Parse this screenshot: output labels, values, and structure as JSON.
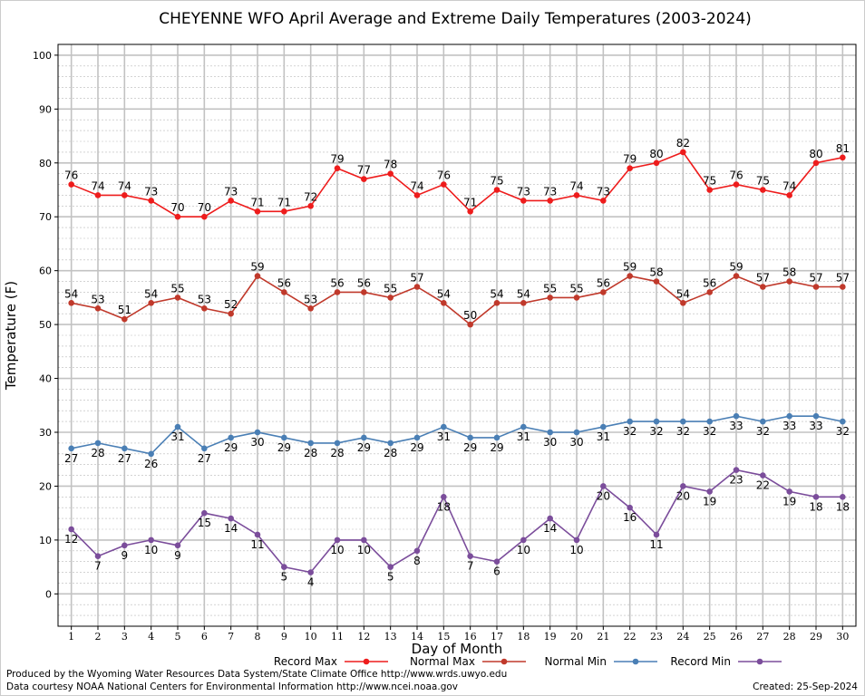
{
  "chart_data": {
    "type": "line",
    "title": "CHEYENNE WFO April Average and Extreme Daily Temperatures (2003-2024)",
    "xlabel": "Day of Month",
    "ylabel": "Temperature (F)",
    "xlim": [
      0.5,
      30.5
    ],
    "ylim": [
      -6,
      102
    ],
    "y_ticks": [
      0,
      10,
      20,
      30,
      40,
      50,
      60,
      70,
      80,
      90,
      100
    ],
    "x": [
      1,
      2,
      3,
      4,
      5,
      6,
      7,
      8,
      9,
      10,
      11,
      12,
      13,
      14,
      15,
      16,
      17,
      18,
      19,
      20,
      21,
      22,
      23,
      24,
      25,
      26,
      27,
      28,
      29,
      30
    ],
    "grid": true,
    "legend_position": "bottom",
    "series": [
      {
        "name": "Record Max",
        "color": "#ee1c1c",
        "label_position": "above",
        "values": [
          76,
          74,
          74,
          73,
          70,
          70,
          73,
          71,
          71,
          72,
          79,
          77,
          78,
          74,
          76,
          71,
          75,
          73,
          73,
          74,
          73,
          79,
          80,
          82,
          75,
          76,
          75,
          74,
          80,
          81
        ]
      },
      {
        "name": "Normal Max",
        "color": "#c0392b",
        "label_position": "above",
        "values": [
          54,
          53,
          51,
          54,
          55,
          53,
          52,
          59,
          56,
          53,
          56,
          56,
          55,
          57,
          54,
          50,
          54,
          54,
          55,
          55,
          56,
          59,
          58,
          54,
          56,
          59,
          57,
          58,
          57,
          57
        ]
      },
      {
        "name": "Normal Min",
        "color": "#4a7fb5",
        "label_position": "below",
        "values": [
          27,
          28,
          27,
          26,
          31,
          27,
          29,
          30,
          29,
          28,
          28,
          29,
          28,
          29,
          31,
          29,
          29,
          31,
          30,
          30,
          31,
          32,
          32,
          32,
          32,
          33,
          32,
          33,
          33,
          32
        ]
      },
      {
        "name": "Record Min",
        "color": "#7b4d9b",
        "label_position": "below",
        "values": [
          12,
          7,
          9,
          10,
          9,
          15,
          14,
          11,
          5,
          4,
          10,
          10,
          5,
          8,
          18,
          7,
          6,
          10,
          14,
          10,
          20,
          16,
          11,
          20,
          19,
          23,
          22,
          19,
          18,
          18
        ]
      }
    ]
  },
  "footer": {
    "produced_by": "Produced by the Wyoming Water Resources Data System/State Climate Office http://www.wrds.uwyo.edu",
    "courtesy": "Data courtesy NOAA National Centers for Environmental Information http://www.ncei.noaa.gov",
    "created": "Created:  25-Sep-2024"
  }
}
